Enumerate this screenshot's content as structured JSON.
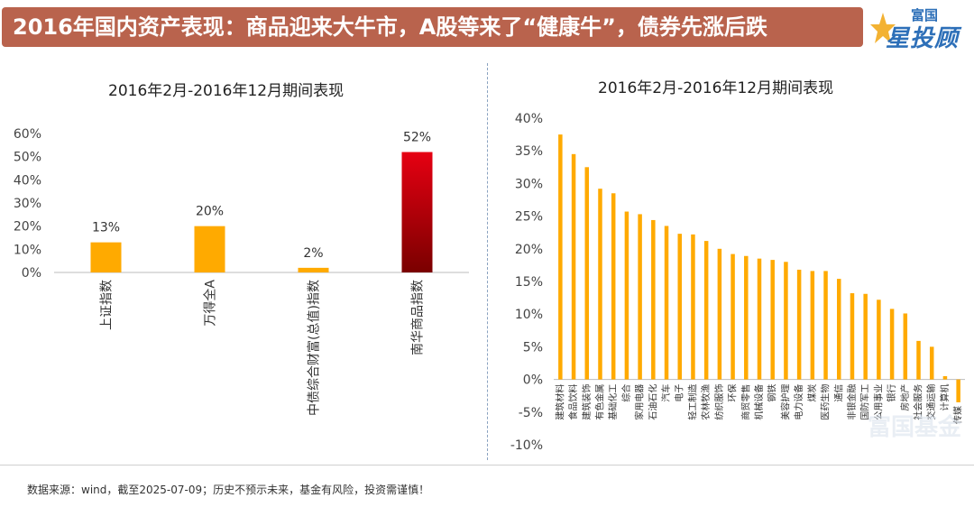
{
  "header": {
    "title": "2016年国内资产表现：商品迎来大牛市，A股等来了“健康牛”，债券先涨后跌",
    "logo_top": "富国",
    "logo_main": "星投顾",
    "bar_color": "#b9634d",
    "logo_color": "#2d6fb8"
  },
  "footer": {
    "source": "数据来源：wind，截至2025-07-09；历史不预示未来，基金有风险，投资需谨慎！"
  },
  "watermark": "富国基金",
  "chart_data": [
    {
      "type": "bar",
      "title": "2016年2月-2016年12月期间表现",
      "categories": [
        "上证指数",
        "万得全A",
        "中债综合财富(总值)指数",
        "南华商品指数"
      ],
      "values": [
        13,
        20,
        2,
        52
      ],
      "data_labels": [
        "13%",
        "20%",
        "2%",
        "52%"
      ],
      "ylim": [
        0,
        60
      ],
      "yticks": [
        "0%",
        "10%",
        "20%",
        "30%",
        "40%",
        "50%",
        "60%"
      ],
      "colors": [
        "#ffaa00",
        "#ffaa00",
        "#ffaa00",
        "gradient-red"
      ],
      "grid": false
    },
    {
      "type": "bar",
      "title": "2016年2月-2016年12月期间表现",
      "categories": [
        "建筑材料",
        "食品饮料",
        "建筑装饰",
        "有色金属",
        "基础化工",
        "综合",
        "家用电器",
        "石油石化",
        "汽车",
        "电子",
        "轻工制造",
        "农林牧渔",
        "纺织服饰",
        "环保",
        "商贸零售",
        "机械设备",
        "钢铁",
        "美容护理",
        "电力设备",
        "煤炭",
        "医药生物",
        "通信",
        "非银金融",
        "国防军工",
        "公用事业",
        "银行",
        "房地产",
        "社会服务",
        "交通运输",
        "计算机",
        "传媒"
      ],
      "values": [
        37.5,
        34.5,
        32.5,
        29.2,
        28.5,
        25.7,
        25.3,
        24.4,
        23.5,
        22.3,
        22.2,
        21.2,
        20.0,
        19.2,
        18.9,
        18.5,
        18.3,
        18.0,
        16.8,
        16.6,
        16.6,
        15.4,
        13.2,
        13.1,
        12.2,
        10.8,
        10.1,
        5.9,
        5.0,
        0.5,
        -3.5
      ],
      "ylim": [
        -10,
        40
      ],
      "yticks": [
        "-10%",
        "-5%",
        "0%",
        "5%",
        "10%",
        "15%",
        "20%",
        "25%",
        "30%",
        "35%",
        "40%"
      ],
      "colors": [
        "#ffaa00"
      ],
      "grid": false
    }
  ]
}
